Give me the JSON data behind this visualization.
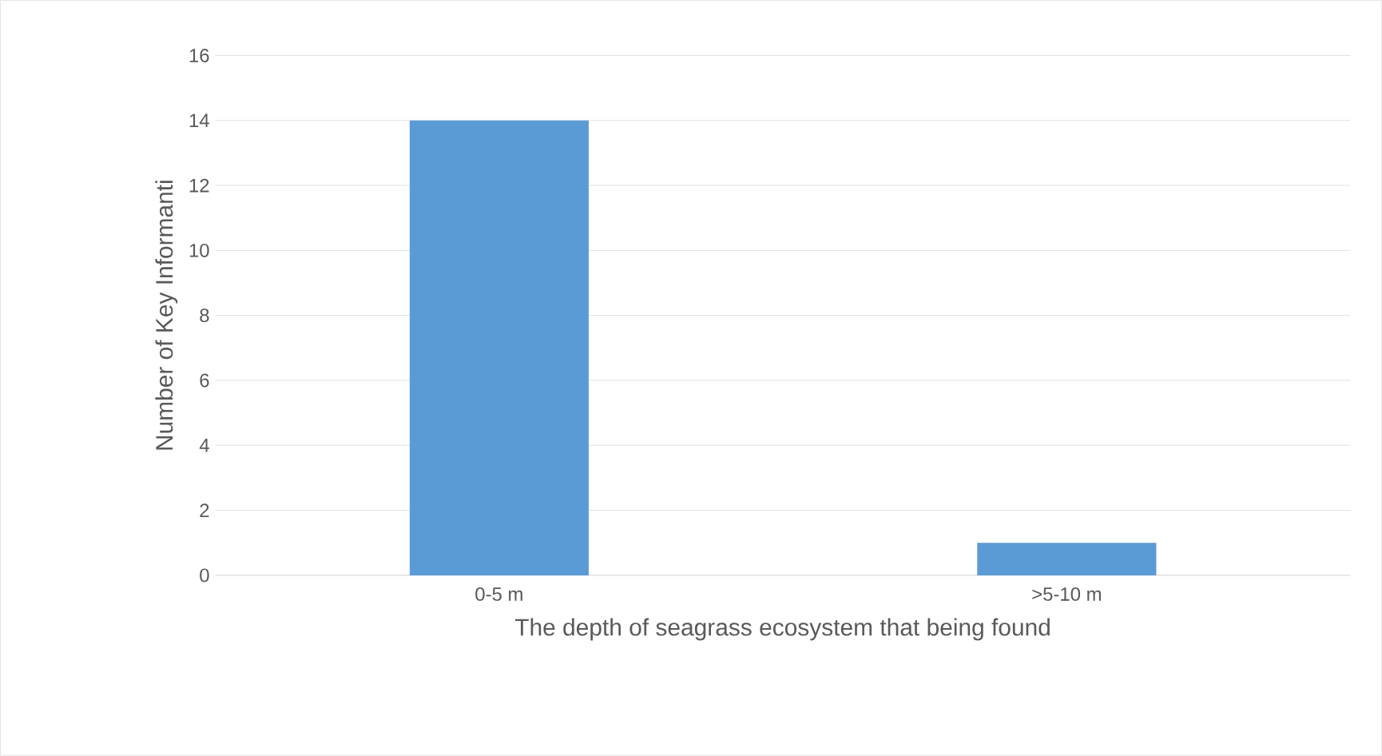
{
  "chart_data": {
    "type": "bar",
    "xlabel": "The depth of seagrass ecosystem that being found",
    "ylabel": "Number of Key Informanti",
    "categories": [
      "0-5 m",
      ">5-10 m"
    ],
    "values": [
      14,
      1
    ],
    "color": "#5b9bd5",
    "ylim": [
      0,
      16
    ],
    "yticks": [
      0,
      2,
      4,
      6,
      8,
      10,
      12,
      14,
      16
    ],
    "grid": "y"
  }
}
